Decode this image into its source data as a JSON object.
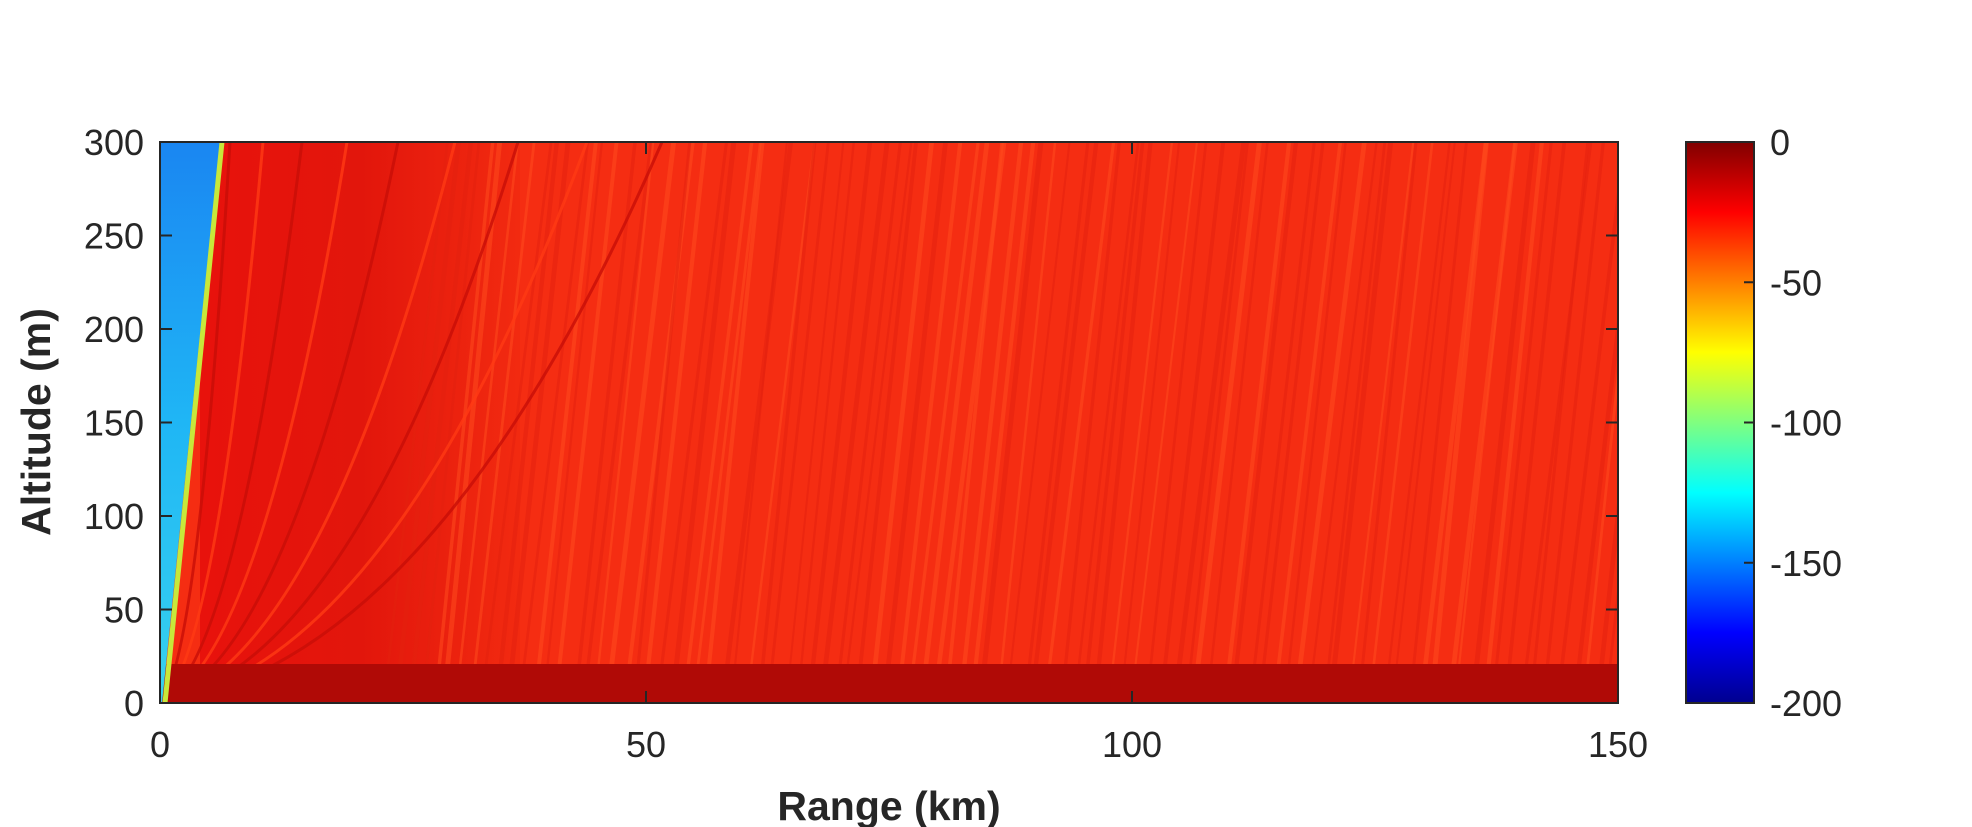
{
  "chart_data": {
    "type": "heatmap",
    "title": "",
    "xlabel": "Range (km)",
    "ylabel": "Altitude (m)",
    "xlim": [
      0,
      150
    ],
    "ylim": [
      0,
      300
    ],
    "x_ticks": [
      0,
      50,
      100,
      150
    ],
    "y_ticks": [
      0,
      50,
      100,
      150,
      200,
      250,
      300
    ],
    "colormap": "jet",
    "colorbar": {
      "range": [
        -200,
        0
      ],
      "ticks": [
        0,
        -50,
        -100,
        -150,
        -200
      ],
      "placement": "right"
    },
    "features": [
      {
        "description_free": true,
        "region": "shadow",
        "x_range_km": [
          0,
          7
        ],
        "value_db_approx": -140
      },
      {
        "region": "near-field interference lobes",
        "x_range_km": [
          7,
          40
        ],
        "value_db_approx": -10
      },
      {
        "region": "far field",
        "x_range_km": [
          40,
          150
        ],
        "value_db_approx": -20
      },
      {
        "region": "surface duct",
        "altitude_range_m": [
          0,
          20
        ],
        "value_db_approx": -5
      }
    ]
  }
}
